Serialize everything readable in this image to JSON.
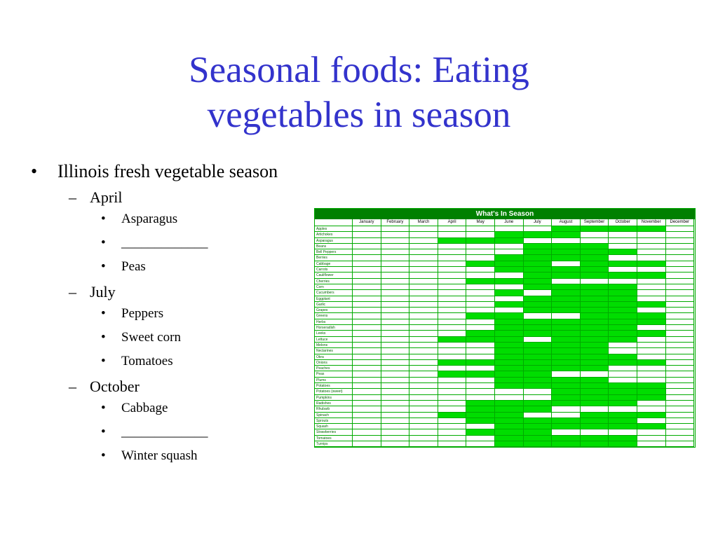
{
  "title_line1": "Seasonal foods: Eating",
  "title_line2": "vegetables in season",
  "main_bullet": "Illinois fresh vegetable season",
  "bullet_char": "•",
  "dash_char": "–",
  "groups": [
    {
      "month": "April",
      "items": [
        "Asparagus",
        "_____________",
        "Peas"
      ]
    },
    {
      "month": "July",
      "items": [
        "Peppers",
        "Sweet corn",
        "Tomatoes"
      ]
    },
    {
      "month": "October",
      "items": [
        "Cabbage",
        "_____________",
        "Winter squash"
      ]
    }
  ],
  "season_table": {
    "title": "What's In Season",
    "months": [
      "January",
      "February",
      "March",
      "April",
      "May",
      "June",
      "July",
      "August",
      "September",
      "October",
      "November",
      "December"
    ],
    "colors": {
      "header": "#008000",
      "in_season": "#00dd00",
      "grid": "#00aa00"
    },
    "rows": [
      {
        "name": "Apples",
        "in_season": [
          7,
          8,
          9,
          10
        ]
      },
      {
        "name": "Artichokes",
        "in_season": [
          5,
          6,
          7
        ]
      },
      {
        "name": "Asparagus",
        "in_season": [
          3,
          4,
          5
        ]
      },
      {
        "name": "Beans",
        "in_season": [
          6,
          7,
          8
        ]
      },
      {
        "name": "Bell Peppers",
        "in_season": [
          6,
          7,
          8,
          9
        ]
      },
      {
        "name": "Berries",
        "in_season": [
          5,
          6,
          7,
          8
        ]
      },
      {
        "name": "Cabbage",
        "in_season": [
          4,
          5,
          6,
          8,
          9,
          10
        ]
      },
      {
        "name": "Carrots",
        "in_season": [
          5,
          6,
          7,
          8
        ]
      },
      {
        "name": "Cauliflower",
        "in_season": [
          6,
          7,
          8,
          9,
          10
        ]
      },
      {
        "name": "Cherries",
        "in_season": [
          4,
          5,
          6
        ]
      },
      {
        "name": "Corn",
        "in_season": [
          6,
          7,
          8,
          9
        ]
      },
      {
        "name": "Cucumbers",
        "in_season": [
          5,
          7,
          8,
          9
        ]
      },
      {
        "name": "Eggplant",
        "in_season": [
          6,
          7,
          8,
          9
        ]
      },
      {
        "name": "Garlic",
        "in_season": [
          5,
          6,
          7,
          8,
          9,
          10
        ]
      },
      {
        "name": "Grapes",
        "in_season": [
          6,
          7,
          8,
          9
        ]
      },
      {
        "name": "Greens",
        "in_season": [
          4,
          5,
          8,
          9,
          10
        ]
      },
      {
        "name": "Herbs",
        "in_season": [
          5,
          6,
          7,
          8,
          9,
          10
        ]
      },
      {
        "name": "Horseradish",
        "in_season": [
          5,
          6,
          7,
          8,
          9
        ]
      },
      {
        "name": "Leeks",
        "in_season": [
          4,
          5,
          6,
          7,
          8,
          9,
          10
        ]
      },
      {
        "name": "Lettuce",
        "in_season": [
          3,
          4,
          5,
          7,
          8,
          9
        ]
      },
      {
        "name": "Melons",
        "in_season": [
          5,
          6,
          7,
          8
        ]
      },
      {
        "name": "Nectarines",
        "in_season": [
          5,
          6,
          7,
          8
        ]
      },
      {
        "name": "Okra",
        "in_season": [
          5,
          6,
          7,
          8,
          9
        ]
      },
      {
        "name": "Onions",
        "in_season": [
          3,
          4,
          5,
          6,
          7,
          8,
          9,
          10
        ]
      },
      {
        "name": "Peaches",
        "in_season": [
          5,
          6,
          7,
          8
        ]
      },
      {
        "name": "Peas",
        "in_season": [
          3,
          4,
          5,
          6
        ]
      },
      {
        "name": "Plums",
        "in_season": [
          5,
          6,
          7,
          8
        ]
      },
      {
        "name": "Potatoes",
        "in_season": [
          5,
          6,
          7,
          8,
          9,
          10
        ]
      },
      {
        "name": "Potatoes (sweet)",
        "in_season": [
          7,
          8,
          9,
          10
        ]
      },
      {
        "name": "Pumpkins",
        "in_season": [
          7,
          8,
          9,
          10
        ]
      },
      {
        "name": "Radishes",
        "in_season": [
          4,
          5,
          6,
          7,
          8,
          9
        ]
      },
      {
        "name": "Rhubarb",
        "in_season": [
          4,
          5,
          6
        ]
      },
      {
        "name": "Spinach",
        "in_season": [
          3,
          4,
          5,
          8,
          9,
          10
        ]
      },
      {
        "name": "Sprouts",
        "in_season": [
          4,
          5,
          6,
          7,
          8,
          9
        ]
      },
      {
        "name": "Squash",
        "in_season": [
          5,
          6,
          7,
          8,
          9,
          10
        ]
      },
      {
        "name": "Strawberries",
        "in_season": [
          4,
          5,
          6
        ]
      },
      {
        "name": "Tomatoes",
        "in_season": [
          5,
          6,
          7,
          8,
          9
        ]
      },
      {
        "name": "Turnips",
        "in_season": [
          5,
          6,
          7,
          8,
          9
        ]
      }
    ]
  }
}
